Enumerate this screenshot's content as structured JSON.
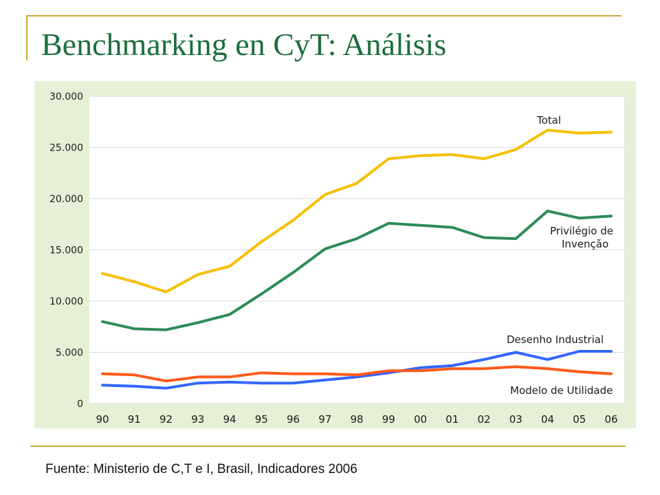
{
  "slide": {
    "title": "Benchmarking en CyT: Análisis",
    "source": "Fuente: Ministerio de C,T e I, Brasil, Indicadores 2006"
  },
  "colors": {
    "accent_line": "#c9aa3a",
    "title": "#1b6e3e",
    "chart_bg": "#e6f0d6"
  },
  "chart_data": {
    "type": "line",
    "title": "",
    "xlabel": "",
    "ylabel": "",
    "categories": [
      "90",
      "91",
      "92",
      "93",
      "94",
      "95",
      "96",
      "97",
      "98",
      "99",
      "00",
      "01",
      "02",
      "03",
      "04",
      "05",
      "06"
    ],
    "ylim": [
      0,
      30000
    ],
    "yticks": [
      0,
      5000,
      10000,
      15000,
      20000,
      25000,
      30000
    ],
    "ytick_labels": [
      "0",
      "5.000",
      "10.000",
      "15.000",
      "20.000",
      "25.000",
      "30.000"
    ],
    "grid": "horizontal",
    "series": [
      {
        "name": "Total",
        "color": "#f5c000",
        "values": [
          12700,
          11900,
          10900,
          12600,
          13400,
          15800,
          17900,
          20400,
          21500,
          23900,
          24200,
          24300,
          23900,
          24800,
          26700,
          26400,
          26500
        ]
      },
      {
        "name": "Privilégio de Invenção",
        "color": "#2e8b57",
        "values": [
          8000,
          7300,
          7200,
          7900,
          8700,
          10700,
          12800,
          15100,
          16100,
          17600,
          17400,
          17200,
          16200,
          16100,
          18800,
          18100,
          18300
        ]
      },
      {
        "name": "Desenho Industrial",
        "color": "#3366ff",
        "values": [
          1800,
          1700,
          1500,
          2000,
          2100,
          2000,
          2000,
          2300,
          2600,
          3000,
          3500,
          3700,
          4300,
          5000,
          4300,
          5100,
          5100
        ]
      },
      {
        "name": "Modelo de Utilidade",
        "color": "#ff5a1a",
        "values": [
          2900,
          2800,
          2200,
          2600,
          2600,
          3000,
          2900,
          2900,
          2800,
          3200,
          3200,
          3400,
          3400,
          3600,
          3400,
          3100,
          2900
        ]
      }
    ],
    "series_labels": [
      {
        "series": 0,
        "lines": [
          "Total"
        ]
      },
      {
        "series": 1,
        "lines": [
          "Privilégio de",
          "Invenção"
        ]
      },
      {
        "series": 2,
        "lines": [
          "Desenho Industrial"
        ]
      },
      {
        "series": 3,
        "lines": [
          "Modelo de Utilidade"
        ]
      }
    ]
  }
}
